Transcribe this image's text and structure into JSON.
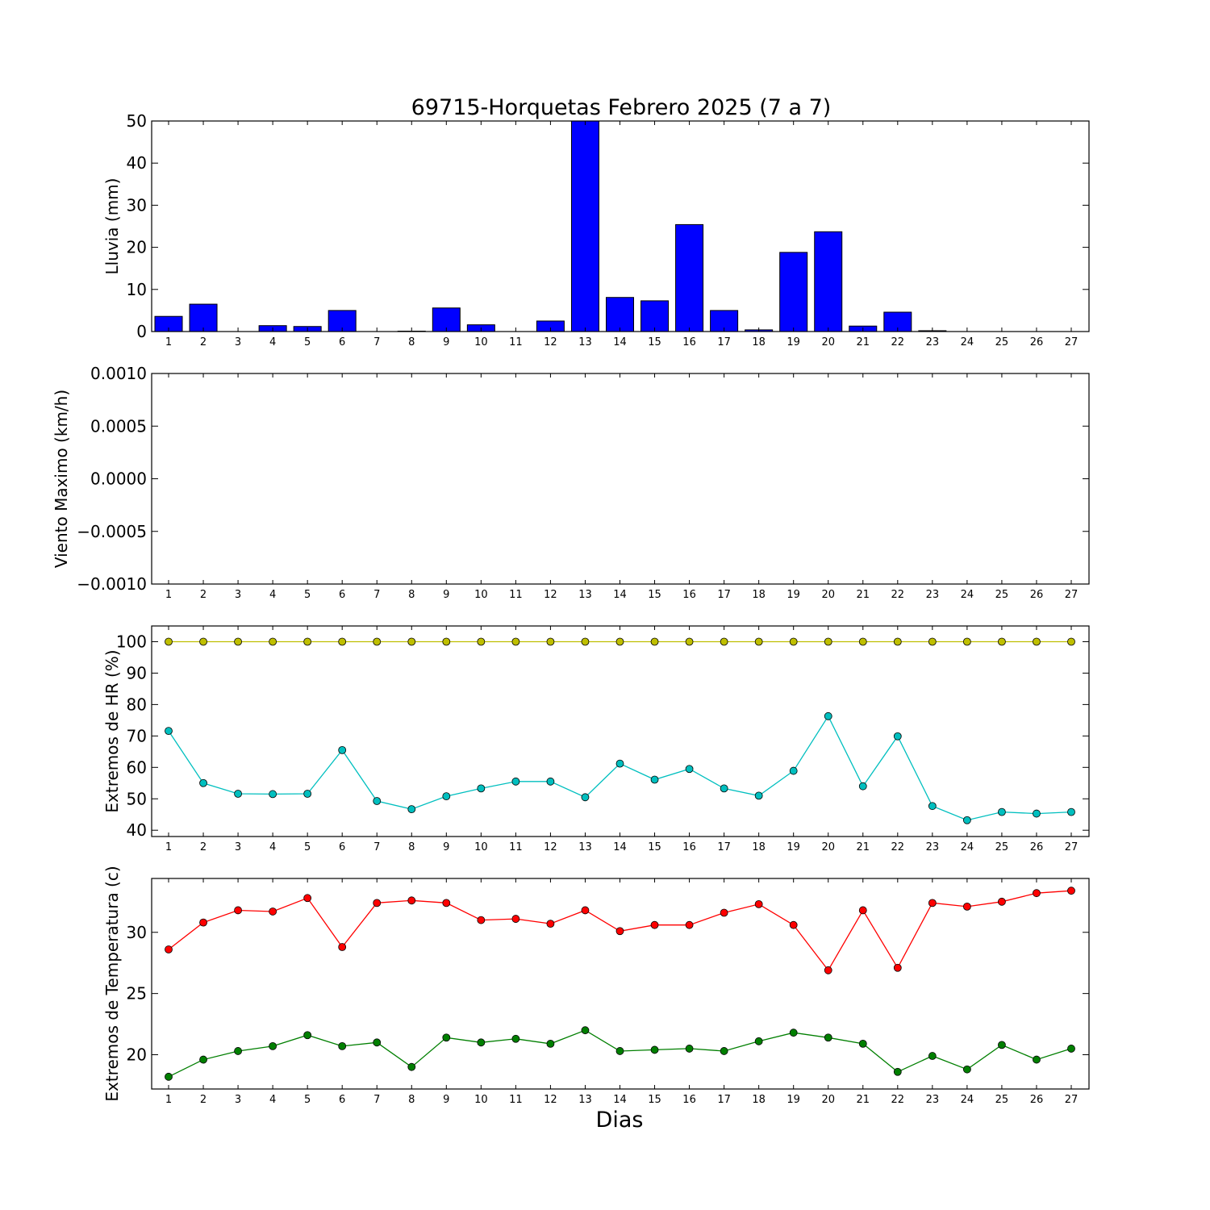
{
  "figure": {
    "title": "69715-Horquetas Febrero 2025  (7 a 7)",
    "xlabel": "Dias"
  },
  "chart_data": [
    {
      "type": "bar",
      "ylabel": "Lluvia (mm)",
      "ylim": [
        0,
        50
      ],
      "yticks": [
        "0",
        "10",
        "20",
        "30",
        "40",
        "50"
      ],
      "categories": [
        "1",
        "2",
        "3",
        "4",
        "5",
        "6",
        "7",
        "8",
        "9",
        "10",
        "11",
        "12",
        "13",
        "14",
        "15",
        "16",
        "17",
        "18",
        "19",
        "20",
        "21",
        "22",
        "23",
        "24",
        "25",
        "26",
        "27"
      ],
      "series": [
        {
          "color": "#0000ff",
          "values": [
            3.6,
            6.5,
            0,
            1.4,
            1.2,
            5.0,
            0,
            0.1,
            5.6,
            1.6,
            0,
            2.5,
            50,
            8.1,
            7.3,
            25.4,
            5.0,
            0.4,
            18.8,
            23.7,
            1.3,
            4.6,
            0.2,
            0,
            0,
            0,
            0
          ]
        }
      ]
    },
    {
      "type": "line",
      "ylabel": "Viento Maximo (km/h)",
      "ylim": [
        -0.001,
        0.001
      ],
      "yticks": [
        "0.0010",
        "0.0005",
        "0.0000",
        "−0.0005",
        "−0.0010"
      ],
      "series": []
    },
    {
      "type": "line",
      "ylabel": "Extremos de HR (%)",
      "ylim": [
        38,
        105
      ],
      "yticks": [
        "40",
        "50",
        "60",
        "70",
        "80",
        "90",
        "100"
      ],
      "series": [
        {
          "color": "#bfbf00",
          "values": [
            100,
            100,
            100,
            100,
            100,
            100,
            100,
            100,
            100,
            100,
            100,
            100,
            100,
            100,
            100,
            100,
            100,
            100,
            100,
            100,
            100,
            100,
            100,
            100,
            100,
            100,
            100
          ]
        },
        {
          "color": "#00bfbf",
          "values": [
            71.6,
            55.0,
            51.6,
            51.5,
            51.6,
            65.5,
            49.3,
            46.7,
            50.8,
            53.3,
            55.5,
            55.5,
            50.5,
            61.2,
            56.1,
            59.5,
            53.3,
            51.0,
            58.9,
            76.3,
            54.0,
            69.9,
            47.7,
            43.2,
            45.8,
            45.3,
            45.8
          ]
        }
      ]
    },
    {
      "type": "line",
      "ylabel": "Extremos de Temperatura (c)",
      "ylim": [
        17.2,
        34.4
      ],
      "yticks": [
        "20",
        "25",
        "30"
      ],
      "series": [
        {
          "color": "#ff0000",
          "values": [
            28.6,
            30.8,
            31.8,
            31.7,
            32.8,
            28.8,
            32.4,
            32.6,
            32.4,
            31.0,
            31.1,
            30.7,
            31.8,
            30.1,
            30.6,
            30.6,
            31.6,
            32.3,
            30.6,
            26.9,
            31.8,
            27.1,
            32.4,
            32.1,
            32.5,
            33.2,
            33.4
          ]
        },
        {
          "color": "#007f00",
          "values": [
            18.2,
            19.6,
            20.3,
            20.7,
            21.6,
            20.7,
            21.0,
            19.0,
            21.4,
            21.0,
            21.3,
            20.9,
            22.0,
            20.3,
            20.4,
            20.5,
            20.3,
            21.1,
            21.8,
            21.4,
            20.9,
            18.6,
            19.9,
            18.8,
            20.8,
            19.6,
            20.5
          ]
        }
      ]
    }
  ]
}
